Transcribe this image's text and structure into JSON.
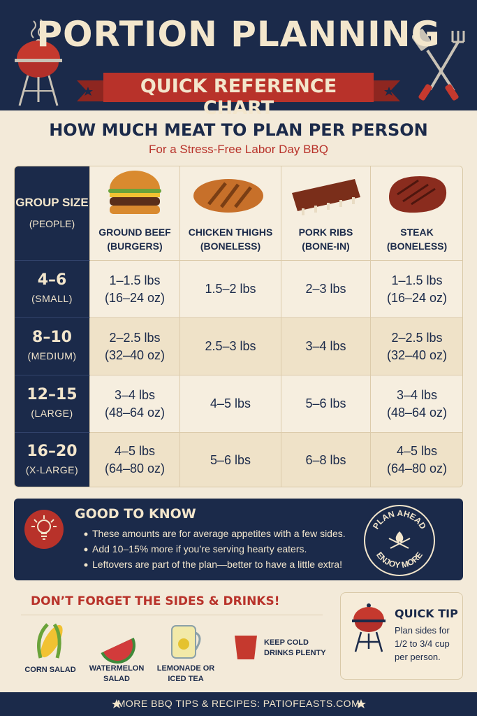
{
  "header": {
    "title": "PORTION PLANNING",
    "subtitle": "QUICK REFERENCE CHART"
  },
  "intro": {
    "heading": "HOW MUCH MEAT TO PLAN PER PERSON",
    "subheading": "For a Stress-Free Labor Day BBQ"
  },
  "table": {
    "columns": [
      {
        "name": "GROUP SIZE",
        "note": "(PEOPLE)"
      },
      {
        "name": "GROUND BEEF",
        "note": "(BURGERS)"
      },
      {
        "name": "CHICKEN THIGHS",
        "note": "(BONELESS)"
      },
      {
        "name": "PORK RIBS",
        "note": "(BONE-IN)"
      },
      {
        "name": "STEAK",
        "note": "(BONELESS)"
      }
    ],
    "rows": [
      {
        "size": "4–6",
        "label": "(SMALL)",
        "cells": [
          [
            "1–1.5 lbs",
            "(16–24 oz)"
          ],
          [
            "1.5–2 lbs"
          ],
          [
            "2–3 lbs"
          ],
          [
            "1–1.5 lbs",
            "(16–24 oz)"
          ]
        ]
      },
      {
        "size": "8–10",
        "label": "(MEDIUM)",
        "cells": [
          [
            "2–2.5 lbs",
            "(32–40 oz)"
          ],
          [
            "2.5–3 lbs"
          ],
          [
            "3–4 lbs"
          ],
          [
            "2–2.5 lbs",
            "(32–40 oz)"
          ]
        ]
      },
      {
        "size": "12–15",
        "label": "(LARGE)",
        "cells": [
          [
            "3–4 lbs",
            "(48–64 oz)"
          ],
          [
            "4–5 lbs"
          ],
          [
            "5–6 lbs"
          ],
          [
            "3–4 lbs",
            "(48–64 oz)"
          ]
        ]
      },
      {
        "size": "16–20",
        "label": "(X-LARGE)",
        "cells": [
          [
            "4–5 lbs",
            "(64–80 oz)"
          ],
          [
            "5–6 lbs"
          ],
          [
            "6–8 lbs"
          ],
          [
            "4–5 lbs",
            "(64–80 oz)"
          ]
        ]
      }
    ]
  },
  "notes": {
    "title": "GOOD TO KNOW",
    "items": [
      "These amounts are for average appetites with a few sides.",
      "Add 10–15% more if you’re serving hearty eaters.",
      "Leftovers are part of the plan—better to have a little extra!"
    ],
    "badge": {
      "top": "PLAN AHEAD",
      "bottom": "ENJOY MORE"
    }
  },
  "sides": {
    "title": "DON’T FORGET THE SIDES & DRINKS!",
    "items": [
      "CORN SALAD",
      "WATERMELON SALAD",
      "LEMONADE OR ICED TEA",
      "KEEP COLD DRINKS PLENTY"
    ]
  },
  "tip": {
    "title": "QUICK TIP",
    "text": "Plan sides for 1/2 to 3/4 cup per person."
  },
  "footer": {
    "text": "MORE BBQ TIPS & RECIPES: PATIOFEASTS.COM"
  }
}
